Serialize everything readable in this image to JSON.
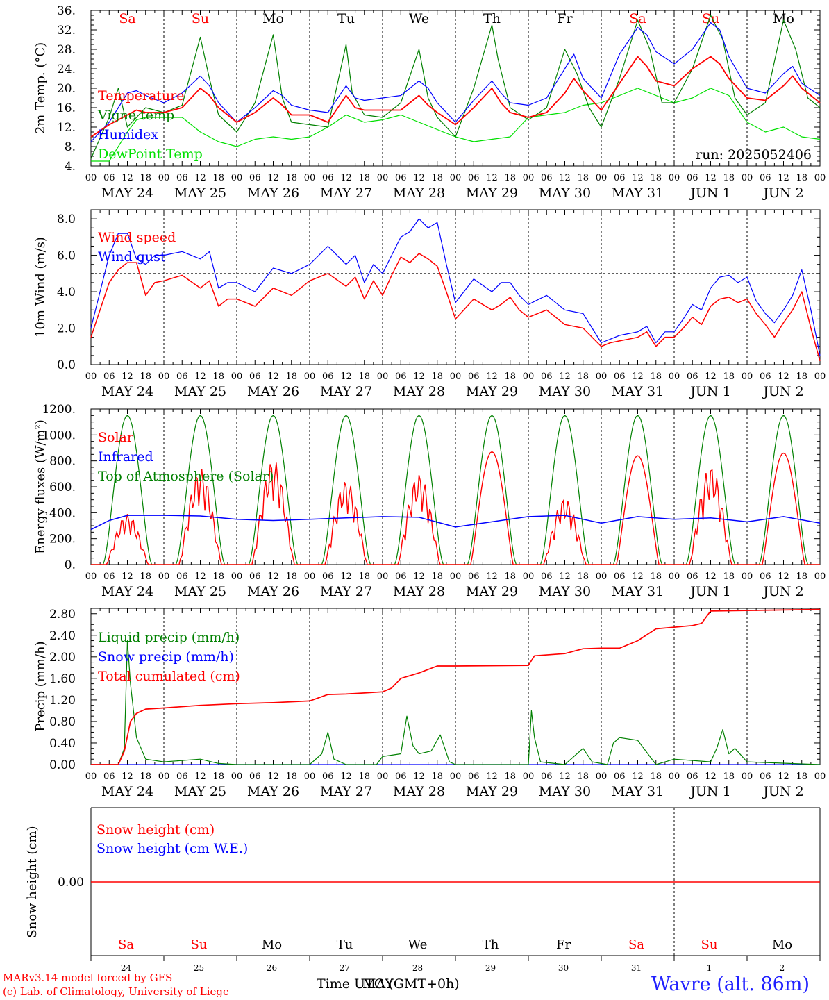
{
  "colors": {
    "red": "#ff0000",
    "green": "#008000",
    "blue": "#0000ff",
    "lightgreen": "#00e000",
    "black": "#000000"
  },
  "days": [
    "Sa",
    "Su",
    "Mo",
    "Tu",
    "We",
    "Th",
    "Fr",
    "Sa",
    "Su",
    "Mo"
  ],
  "day_colors": [
    "red",
    "red",
    "black",
    "black",
    "black",
    "black",
    "black",
    "red",
    "red",
    "black"
  ],
  "dates": [
    "MAY 24",
    "MAY 25",
    "MAY 26",
    "MAY 27",
    "MAY 28",
    "MAY 29",
    "MAY 30",
    "MAY 31",
    "JUN  1",
    "JUN  2"
  ],
  "day_numbers": [
    "24",
    "25",
    "26",
    "27",
    "28",
    "29",
    "30",
    "31",
    "1",
    "2"
  ],
  "hour_labels": [
    "00",
    "06",
    "12",
    "18"
  ],
  "footer": {
    "model": "MARv3.14 model forced by GFS",
    "lab": "(c) Lab. of Climatology, University of Liege",
    "xlabel": "Time UTC (GMT+0h)",
    "xlabel_overlay": "MAY",
    "station": "Wavre (alt. 86m)"
  },
  "chart_data": [
    {
      "type": "line",
      "ylabel": "2m Temp. (°C)",
      "ylim": [
        4,
        36
      ],
      "yticks": [
        "4.",
        "8.",
        "12.",
        "16.",
        "20.",
        "24.",
        "28.",
        "32.",
        "36."
      ],
      "annotation": "run: 2025052406",
      "x_unit": "hours since 2025-05-24 00 UTC",
      "series": [
        {
          "name": "Temperature",
          "color": "red",
          "x": [
            0,
            6,
            12,
            15,
            18,
            24,
            30,
            36,
            39,
            42,
            48,
            54,
            60,
            63,
            66,
            72,
            78,
            84,
            87,
            90,
            96,
            102,
            108,
            111,
            114,
            120,
            126,
            132,
            135,
            138,
            144,
            150,
            156,
            159,
            162,
            168,
            174,
            180,
            183,
            186,
            192,
            198,
            204,
            207,
            210,
            216,
            222,
            228,
            231,
            234,
            240
          ],
          "y": [
            10,
            12.5,
            14.5,
            15.5,
            15,
            15,
            16,
            20,
            18.5,
            16,
            13,
            15,
            18,
            16.5,
            14.5,
            14.5,
            13,
            18.5,
            16,
            15.5,
            15.5,
            15.5,
            18.5,
            16.5,
            15,
            12.5,
            16,
            20,
            17,
            15,
            14,
            15,
            19,
            22,
            19.5,
            15.5,
            21,
            26.5,
            24.5,
            21.5,
            20.5,
            24,
            26.5,
            25,
            22,
            18,
            17.5,
            20.5,
            22.5,
            20,
            17
          ]
        },
        {
          "name": "Vigne temp",
          "color": "green",
          "x": [
            0,
            6,
            9,
            12,
            15,
            18,
            24,
            30,
            36,
            39,
            42,
            48,
            54,
            60,
            63,
            66,
            72,
            78,
            84,
            86,
            90,
            96,
            102,
            108,
            111,
            114,
            120,
            126,
            132,
            134,
            138,
            144,
            150,
            156,
            160,
            164,
            168,
            174,
            180,
            184,
            188,
            192,
            198,
            204,
            208,
            212,
            216,
            222,
            228,
            232,
            236,
            240
          ],
          "y": [
            5.5,
            14,
            20,
            12,
            14,
            16,
            15,
            16.5,
            30.5,
            22,
            14.5,
            11,
            17,
            31,
            18,
            13,
            12.5,
            12,
            29,
            19,
            14.5,
            14,
            17,
            28,
            18,
            14,
            10,
            20,
            33,
            26,
            16,
            13.5,
            16,
            28,
            23,
            16,
            12,
            22,
            34,
            28,
            17,
            17,
            24,
            35,
            30,
            18,
            14.5,
            17,
            34,
            28,
            18,
            16
          ]
        },
        {
          "name": "Humidex",
          "color": "blue",
          "x": [
            0,
            6,
            12,
            15,
            18,
            24,
            30,
            36,
            39,
            42,
            48,
            54,
            60,
            63,
            66,
            72,
            78,
            84,
            87,
            90,
            96,
            102,
            108,
            111,
            114,
            120,
            126,
            132,
            135,
            138,
            144,
            150,
            156,
            159,
            162,
            168,
            174,
            180,
            183,
            186,
            192,
            198,
            204,
            207,
            210,
            216,
            222,
            228,
            231,
            234,
            240
          ],
          "y": [
            9,
            13,
            19,
            19.5,
            18.5,
            17,
            19,
            22.5,
            20.5,
            17,
            13,
            16,
            19.5,
            18.5,
            16.5,
            15.5,
            15,
            20.5,
            18,
            17.5,
            18,
            18.5,
            21.5,
            20,
            17,
            13,
            17.5,
            21.5,
            19,
            17,
            16.5,
            18,
            24,
            27,
            22,
            18,
            27,
            32.5,
            31,
            27.5,
            25,
            28,
            33.5,
            32,
            26.5,
            20,
            19,
            23,
            24.5,
            21,
            18.5
          ]
        },
        {
          "name": "DewPoint Temp",
          "color": "lightgreen",
          "x": [
            0,
            6,
            12,
            15,
            18,
            24,
            30,
            36,
            42,
            48,
            54,
            60,
            66,
            72,
            78,
            84,
            90,
            96,
            102,
            108,
            114,
            120,
            126,
            132,
            138,
            144,
            150,
            156,
            162,
            168,
            174,
            180,
            186,
            192,
            198,
            204,
            210,
            216,
            222,
            228,
            234,
            240
          ],
          "y": [
            5,
            5,
            11,
            13.5,
            14,
            14,
            14,
            11,
            9,
            8,
            9.5,
            10,
            9.5,
            10,
            12,
            14.5,
            13,
            13.5,
            14.5,
            13,
            11.5,
            10,
            9,
            9.5,
            10,
            14,
            14.5,
            15,
            16.5,
            17,
            18.5,
            20,
            18.5,
            17,
            18,
            20,
            18.5,
            13,
            11,
            12,
            10,
            9.5
          ]
        }
      ]
    },
    {
      "type": "line",
      "ylabel": "10m Wind (m/s)",
      "ylim": [
        0,
        8.5
      ],
      "yticks": [
        "0.0",
        "2.0",
        "4.0",
        "6.0",
        "8.0"
      ],
      "reference_line": 5.0,
      "series": [
        {
          "name": "Wind speed",
          "color": "red",
          "x": [
            0,
            3,
            6,
            9,
            12,
            15,
            18,
            21,
            24,
            30,
            36,
            39,
            42,
            45,
            48,
            54,
            60,
            66,
            72,
            78,
            84,
            87,
            90,
            93,
            96,
            99,
            102,
            105,
            108,
            111,
            114,
            117,
            120,
            126,
            132,
            135,
            138,
            141,
            144,
            150,
            156,
            162,
            168,
            171,
            174,
            177,
            180,
            183,
            186,
            189,
            192,
            195,
            198,
            201,
            204,
            207,
            210,
            213,
            216,
            219,
            222,
            225,
            228,
            231,
            234,
            237,
            240
          ],
          "y": [
            1.5,
            3,
            4.5,
            5.2,
            5.6,
            5.6,
            3.8,
            4.5,
            4.6,
            4.9,
            4.2,
            4.6,
            3.2,
            3.6,
            3.6,
            3.2,
            4.2,
            3.8,
            4.6,
            5.0,
            4.3,
            4.8,
            3.6,
            4.6,
            3.8,
            4.9,
            5.9,
            5.6,
            6.1,
            5.8,
            5.4,
            4.0,
            2.5,
            3.6,
            3.0,
            3.3,
            3.7,
            3.0,
            2.6,
            3.0,
            2.2,
            2.0,
            1.0,
            1.2,
            1.3,
            1.4,
            1.5,
            1.8,
            1.0,
            1.5,
            1.5,
            2.0,
            2.6,
            2.2,
            3.2,
            3.6,
            3.7,
            3.4,
            3.6,
            2.8,
            2.2,
            1.5,
            2.3,
            3.0,
            4.0,
            2.0,
            0.2
          ]
        },
        {
          "name": "Wind gust",
          "color": "blue",
          "x": [
            0,
            3,
            6,
            9,
            12,
            15,
            18,
            21,
            24,
            30,
            36,
            39,
            42,
            45,
            48,
            54,
            60,
            66,
            72,
            78,
            84,
            87,
            90,
            93,
            96,
            99,
            102,
            105,
            108,
            111,
            114,
            117,
            120,
            126,
            132,
            135,
            138,
            141,
            144,
            150,
            156,
            162,
            168,
            171,
            174,
            177,
            180,
            183,
            186,
            189,
            192,
            195,
            198,
            201,
            204,
            207,
            210,
            213,
            216,
            219,
            222,
            225,
            228,
            231,
            234,
            237,
            240
          ],
          "y": [
            2,
            4,
            6,
            7.2,
            7.2,
            5.8,
            5.5,
            6,
            6,
            6.2,
            5.8,
            6.2,
            4.2,
            4.5,
            4.5,
            4.0,
            5.3,
            5.0,
            5.5,
            6.5,
            5.5,
            6.0,
            4.5,
            5.5,
            5.0,
            6.0,
            7.0,
            7.3,
            8.0,
            7.5,
            7.8,
            5.5,
            3.4,
            4.7,
            4.0,
            4.5,
            4.5,
            3.8,
            3.3,
            3.8,
            3.0,
            2.8,
            1.2,
            1.4,
            1.6,
            1.7,
            1.8,
            2.1,
            1.2,
            1.8,
            1.8,
            2.5,
            3.3,
            3.0,
            4.2,
            4.8,
            4.9,
            4.5,
            4.8,
            3.5,
            2.8,
            2.3,
            3.0,
            3.8,
            5.2,
            3.0,
            0.5
          ]
        }
      ]
    },
    {
      "type": "line",
      "ylabel": "Energy fluxes (W/m²)",
      "ylim": [
        0,
        1200
      ],
      "yticks": [
        "0.",
        "200.",
        "400.",
        "600.",
        "800.",
        "1000.",
        "1200."
      ],
      "series": [
        {
          "name": "Solar",
          "color": "red",
          "peaks": [
            390,
            740,
            810,
            650,
            700,
            870,
            510,
            840,
            760,
            860
          ]
        },
        {
          "name": "Infrared",
          "color": "blue",
          "x": [
            0,
            6,
            12,
            24,
            36,
            48,
            60,
            72,
            84,
            96,
            108,
            120,
            132,
            144,
            156,
            168,
            180,
            192,
            204,
            216,
            228,
            240
          ],
          "y": [
            270,
            340,
            380,
            380,
            375,
            350,
            340,
            350,
            360,
            370,
            365,
            290,
            330,
            370,
            380,
            320,
            370,
            350,
            360,
            330,
            370,
            320
          ]
        },
        {
          "name": "Top of Atmosphere (Solar)",
          "color": "green",
          "peak": 1150
        }
      ]
    },
    {
      "type": "line",
      "ylabel": "Precip (mm/h)",
      "ylim": [
        0,
        2.9
      ],
      "yticks": [
        "0.00",
        "0.40",
        "0.80",
        "1.20",
        "1.60",
        "2.00",
        "2.40",
        "2.80"
      ],
      "series": [
        {
          "name": "Liquid precip (mm/h)",
          "color": "green",
          "x": [
            0,
            9,
            11,
            12,
            13,
            15,
            18,
            24,
            36,
            42,
            48,
            72,
            76,
            78,
            80,
            84,
            94,
            96,
            102,
            104,
            106,
            108,
            112,
            115,
            118,
            120,
            144,
            145,
            146,
            148,
            156,
            162,
            165,
            170,
            172,
            174,
            180,
            186,
            192,
            204,
            206,
            208,
            210,
            212,
            216,
            240
          ],
          "y": [
            0,
            0,
            0.3,
            2.3,
            1.5,
            0.5,
            0.1,
            0.05,
            0.1,
            0.02,
            0,
            0,
            0.2,
            0.6,
            0.1,
            0,
            0,
            0.15,
            0.2,
            0.9,
            0.35,
            0.2,
            0.25,
            0.55,
            0.05,
            0,
            0,
            1.0,
            0.5,
            0.05,
            0,
            0.3,
            0.05,
            0,
            0.4,
            0.5,
            0.45,
            0,
            0.1,
            0.05,
            0.3,
            0.65,
            0.2,
            0.3,
            0.05,
            0
          ]
        },
        {
          "name": "Snow precip (mm/h)",
          "color": "blue",
          "x": [
            0,
            240
          ],
          "y": [
            0,
            0
          ]
        },
        {
          "name": "Total cumulated (cm)",
          "color": "red",
          "x": [
            0,
            9,
            11,
            13,
            15,
            18,
            24,
            36,
            48,
            60,
            72,
            78,
            84,
            96,
            99,
            102,
            108,
            114,
            120,
            144,
            146,
            156,
            162,
            168,
            174,
            180,
            186,
            198,
            201,
            204,
            240
          ],
          "y": [
            0,
            0,
            0.25,
            0.8,
            0.95,
            1.03,
            1.05,
            1.1,
            1.13,
            1.15,
            1.18,
            1.3,
            1.31,
            1.35,
            1.42,
            1.6,
            1.7,
            1.83,
            1.83,
            1.84,
            2.02,
            2.06,
            2.15,
            2.16,
            2.16,
            2.3,
            2.52,
            2.58,
            2.62,
            2.85,
            2.88
          ]
        }
      ]
    },
    {
      "type": "line",
      "ylabel": "Snow height (cm)",
      "yticks": [
        "0.00"
      ],
      "series": [
        {
          "name": "Snow height (cm)",
          "color": "red",
          "x": [
            0,
            240
          ],
          "y": [
            0,
            0
          ]
        },
        {
          "name": "Snow height (cm W.E.)",
          "color": "blue",
          "x": [
            0,
            240
          ],
          "y": [
            0,
            0
          ]
        }
      ]
    }
  ]
}
